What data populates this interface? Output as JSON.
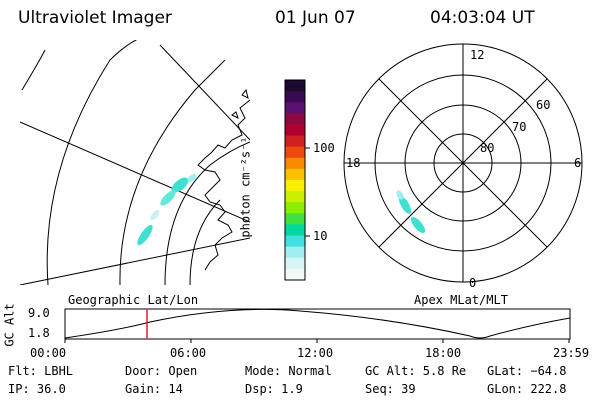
{
  "header": {
    "instrument": "Ultraviolet Imager",
    "date": "01 Jun 07",
    "time": "04:03:04 UT"
  },
  "geo_panel": {
    "label": "Geographic Lat/Lon"
  },
  "colorbar": {
    "unit_label": "photon cm⁻²s⁻¹",
    "ticks": [
      "100",
      "10"
    ],
    "colors": [
      "#1a0a2e",
      "#3a0a50",
      "#5a1070",
      "#8a0a40",
      "#b00030",
      "#d02020",
      "#ee4a10",
      "#f88a00",
      "#fbc000",
      "#f8f000",
      "#c8f000",
      "#8aee00",
      "#40e040",
      "#00d8a0",
      "#40e0e0",
      "#a0eeee",
      "#d8f4f4",
      "#f0f8f8"
    ]
  },
  "polar_panel": {
    "label": "Apex MLat/MLT",
    "mlt_labels": {
      "top": "12",
      "left": "18",
      "right": "6",
      "bottom": "0"
    },
    "lat_labels": [
      "60",
      "70",
      "80"
    ]
  },
  "altitude_plot": {
    "ylabel": "GC Alt",
    "yticks": [
      "9.0",
      "1.8"
    ],
    "xticks": [
      "00:00",
      "06:00",
      "12:00",
      "18:00",
      "23:59"
    ]
  },
  "info": {
    "filter": "Flt: LBHL",
    "ip": "IP: 36.0",
    "door": "Door: Open",
    "gain": "Gain: 14",
    "mode": "Mode: Normal",
    "dsp": "Dsp:    1.9",
    "gc_alt": "GC Alt: 5.8 Re",
    "seq": "Seq: 39",
    "glat": "GLat: −64.8",
    "glon": "GLon: 222.8"
  }
}
